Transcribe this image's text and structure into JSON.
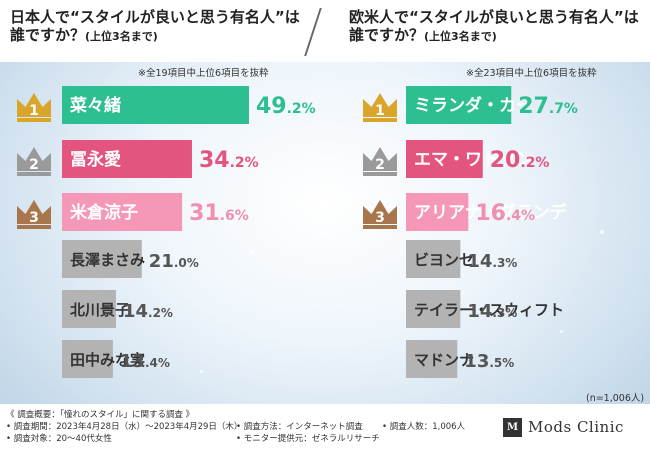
{
  "left": {
    "title_line1": "日本人で“スタイルが良いと思う有名人”は",
    "title_line2": "誰ですか？",
    "title_sub": "(上位3名まで)",
    "note": "※全19項目中上位6項目を抜粋"
  },
  "right": {
    "title_line1": "欧米人で“スタイルが良いと思う有名人”は",
    "title_line2": "誰ですか？",
    "title_sub": "(上位3名まで)",
    "note": "※全23項目中上位6項目を抜粋"
  },
  "colors": {
    "rank1": "#2dbf91",
    "rank2": "#e3557e",
    "rank3": "#f597b6",
    "other": "#b3b3b3",
    "crown1": "#d9a62b",
    "crown2": "#9a9a9a",
    "crown3": "#a9754a",
    "value_green": "#2dbf91",
    "value_pink": "#e3557e",
    "value_lightpink": "#f08fb0",
    "value_gray": "#555555"
  },
  "chart_data": [
    {
      "type": "bar",
      "orientation": "horizontal",
      "categories": [
        "菜々緒",
        "冨永愛",
        "米倉涼子",
        "長澤まさみ",
        "北川景子",
        "田中みな実"
      ],
      "values": [
        49.2,
        34.2,
        31.6,
        21.0,
        14.2,
        13.4
      ],
      "value_labels": [
        [
          "49",
          ".2%"
        ],
        [
          "34",
          ".2%"
        ],
        [
          "31",
          ".6%"
        ],
        [
          "21",
          ".0%"
        ],
        [
          "14",
          ".2%"
        ],
        [
          "13",
          ".4%"
        ]
      ],
      "ranks": [
        "1",
        "2",
        "3"
      ],
      "unit": "%"
    },
    {
      "type": "bar",
      "orientation": "horizontal",
      "categories": [
        "ミランダ・カー",
        "エマ・ワトソン",
        "アリアナ・グランデ",
        "ビヨンセ",
        "テイラー・スウィフト",
        "マドンナ"
      ],
      "values": [
        27.7,
        20.2,
        16.4,
        14.3,
        14.3,
        13.5
      ],
      "value_labels": [
        [
          "27",
          ".7%"
        ],
        [
          "20",
          ".2%"
        ],
        [
          "16",
          ".4%"
        ],
        [
          "14",
          ".3%"
        ],
        [
          "14",
          ".3%"
        ],
        [
          "13",
          ".5%"
        ]
      ],
      "ranks": [
        "1",
        "2",
        "3"
      ],
      "unit": "%"
    }
  ],
  "sample_note": "(n=1,006人)",
  "footer": {
    "overview": "《 調査概要：「憧れのスタイル」に関する調査 》",
    "period": "• 調査期間：2023年4月28日（水）〜2023年4月29日（木）",
    "target": "• 調査対象：20〜40代女性",
    "method": "• 調査方法：インターネット調査",
    "provider": "• モニター提供元：ゼネラルリサーチ",
    "count": "• 調査人数：1,006人",
    "logo_mark": "M",
    "logo_text": "Mods Clinic"
  }
}
